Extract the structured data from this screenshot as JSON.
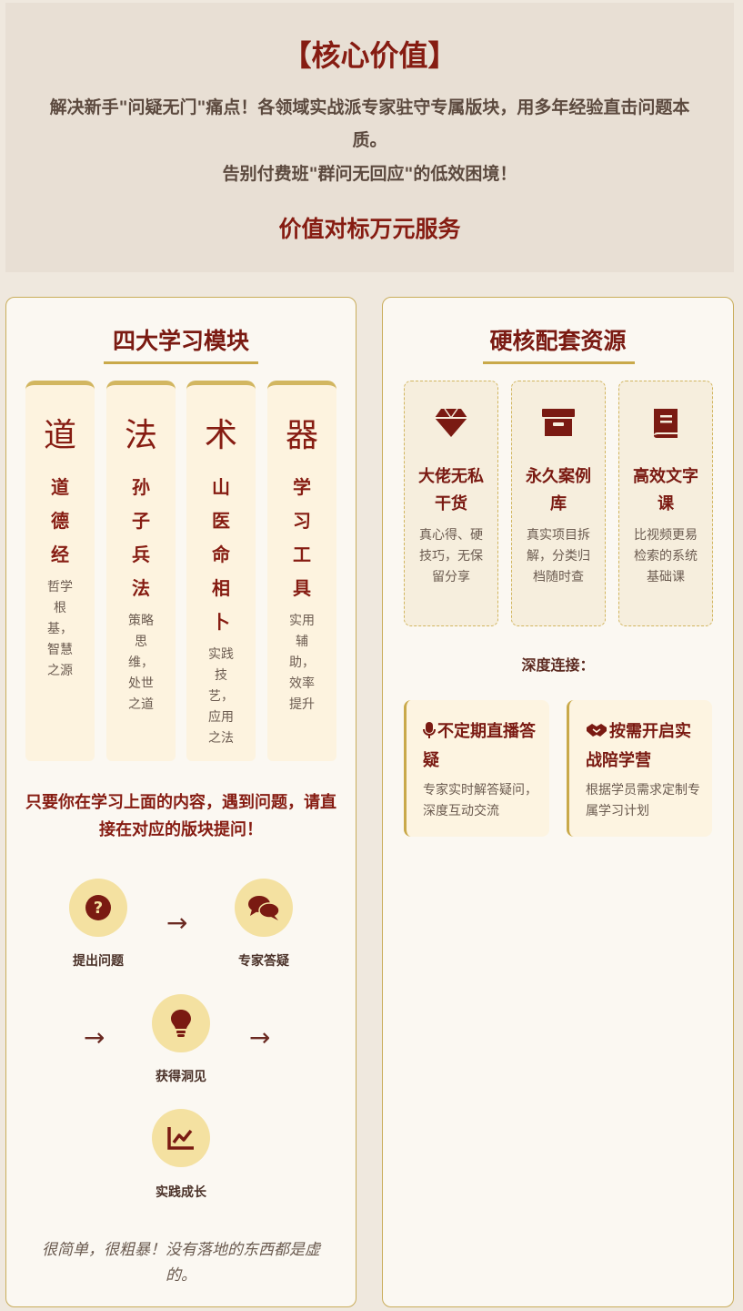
{
  "banner": {
    "title": "【核心价值】",
    "line1": "解决新手\"问疑无门\"痛点！各领域实战派专家驻守专属版块，用多年经验直击问题本质。",
    "line2": "告别付费班\"群问无回应\"的低效困境！",
    "subtitle": "价值对标万元服务"
  },
  "modules": {
    "title": "四大学习模块",
    "columns": [
      {
        "big": "道",
        "name": "道德经",
        "desc": "哲学根基，智慧之源"
      },
      {
        "big": "法",
        "name": "孙子兵法",
        "desc": "策略思维，处世之道"
      },
      {
        "big": "术",
        "name": "山医命相卜",
        "desc": "实践技艺，应用之法"
      },
      {
        "big": "器",
        "name": "学习工具",
        "desc": "实用辅助，效率提升"
      }
    ],
    "ask_text": "只要你在学习上面的内容，遇到问题，请直接在对应的版块提问！",
    "flow": [
      {
        "label": "提出问题",
        "icon": "question-icon"
      },
      {
        "label": "专家答疑",
        "icon": "chat-icon"
      },
      {
        "label": "获得洞见",
        "icon": "lightbulb-icon"
      },
      {
        "label": "实践成长",
        "icon": "chart-line-icon"
      }
    ],
    "arrow": "→",
    "quote": "很简单，很粗暴！没有落地的东西都是虚的。"
  },
  "resources": {
    "title": "硬核配套资源",
    "items": [
      {
        "title": "大佬无私干货",
        "desc": "真心得、硬技巧，无保留分享",
        "icon": "gem-icon"
      },
      {
        "title": "永久案例库",
        "desc": "真实项目拆解，分类归档随时查",
        "icon": "archive-icon"
      },
      {
        "title": "高效文字课",
        "desc": "比视频更易检索的系统基础课",
        "icon": "book-icon"
      }
    ],
    "deep_label": "深度连接：",
    "connections": [
      {
        "title": "不定期直播答疑",
        "desc": "专家实时解答疑问，深度互动交流",
        "icon": "microphone-icon"
      },
      {
        "title": "按需开启实战陪学营",
        "desc": "根据学员需求定制专属学习计划",
        "icon": "handshake-icon"
      }
    ]
  },
  "colors": {
    "accent": "#861c12",
    "gold": "#c9a94a",
    "background": "#efe8de"
  }
}
